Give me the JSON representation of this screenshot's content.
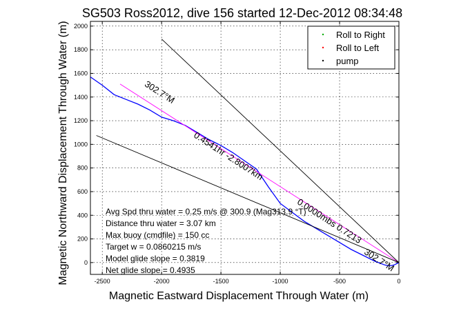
{
  "chart_data": {
    "type": "line",
    "title": "SG503 Ross2012, dive 156 started 12-Dec-2012 08:34:48",
    "xlabel": "Magnetic Eastward Displacement Through Water (m)",
    "ylabel": "Magnetic Northward Displacement Through Water (m)",
    "xlim": [
      -2600,
      0
    ],
    "ylim": [
      -100,
      2040
    ],
    "xticks": [
      -2500,
      -2000,
      -1500,
      -1000,
      -500,
      0
    ],
    "yticks": [
      0,
      200,
      400,
      600,
      800,
      1000,
      1200,
      1400,
      1600,
      1800,
      2000
    ],
    "grid": true,
    "legend_position": "top-right",
    "legend": [
      {
        "label": "Roll to Right",
        "color": "#00aa00"
      },
      {
        "label": "Roll to Left",
        "color": "#ff0000"
      },
      {
        "label": "pump",
        "color": "#000000"
      }
    ],
    "series": [
      {
        "color": "#0000ff",
        "points": [
          [
            0,
            0
          ],
          [
            -40,
            -20
          ],
          [
            -80,
            -28
          ],
          [
            -120,
            -20
          ],
          [
            -200,
            10
          ],
          [
            -400,
            110
          ],
          [
            -600,
            230
          ],
          [
            -800,
            350
          ],
          [
            -1000,
            500
          ],
          [
            -1100,
            640
          ],
          [
            -1200,
            790
          ],
          [
            -1300,
            860
          ],
          [
            -1400,
            930
          ],
          [
            -1500,
            990
          ],
          [
            -1600,
            1040
          ],
          [
            -1700,
            1100
          ],
          [
            -1800,
            1160
          ],
          [
            -1900,
            1200
          ],
          [
            -2000,
            1230
          ],
          [
            -2100,
            1290
          ],
          [
            -2200,
            1340
          ],
          [
            -2300,
            1380
          ],
          [
            -2400,
            1420
          ],
          [
            -2500,
            1500
          ],
          [
            -2600,
            1570
          ]
        ]
      },
      {
        "color": "#ff00ff",
        "points": [
          [
            0,
            0
          ],
          [
            -2350,
            1510
          ]
        ]
      },
      {
        "color": "#000000",
        "points": [
          [
            0,
            0
          ],
          [
            -2000,
            1890
          ]
        ]
      },
      {
        "color": "#000000",
        "points": [
          [
            0,
            0
          ],
          [
            -2550,
            1075
          ]
        ]
      }
    ],
    "annotations": [
      {
        "text": "302.7°M",
        "x": -2030,
        "y": 1420,
        "angle": 33
      },
      {
        "text": "302.7°M",
        "x": -180,
        "y": 0,
        "angle": 33
      },
      {
        "text": "0.4541hr -2.8007km",
        "x": -1450,
        "y": 880,
        "angle": 33
      },
      {
        "text": "0.0000mbs 0.7213",
        "x": -600,
        "y": 330,
        "angle": 33
      }
    ],
    "info_lines": [
      "Avg Spd thru water =  0.25 m/s @ 300.9 (Mag313.9 °T)",
      "Distance thru water =  3.07 km",
      "Max buoy (cmdfile) = 150 cc",
      "Target w = 0.0860215 m/s",
      "Model glide slope = 0.3819",
      "Net glide slope = 0.4935"
    ]
  }
}
